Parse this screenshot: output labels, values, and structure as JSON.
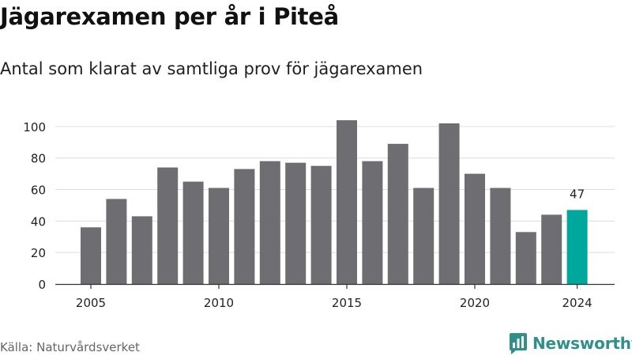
{
  "header": {
    "title": "Jägarexamen per år i Piteå",
    "subtitle": "Antal som klarat av samtliga prov för jägarexamen"
  },
  "footer": {
    "source": "Källa: Naturvårdsverket",
    "brand": "Newsworthy"
  },
  "colors": {
    "bar": "#6e6d72",
    "highlight": "#00a79d",
    "grid": "#dddddd",
    "axis": "#333333",
    "brand": "#2f8f8a"
  },
  "icons": {
    "brand_logo": "newsworthy-chart-bubble-icon"
  },
  "chart_data": {
    "type": "bar",
    "title": "Jägarexamen per år i Piteå",
    "subtitle": "Antal som klarat av samtliga prov för jägarexamen",
    "xlabel": "",
    "ylabel": "",
    "x": [
      2005,
      2006,
      2007,
      2008,
      2009,
      2010,
      2011,
      2012,
      2013,
      2014,
      2015,
      2016,
      2017,
      2018,
      2019,
      2020,
      2021,
      2022,
      2023,
      2024
    ],
    "values": [
      36,
      54,
      43,
      74,
      65,
      61,
      73,
      78,
      77,
      75,
      104,
      78,
      89,
      61,
      102,
      70,
      61,
      33,
      44,
      47
    ],
    "highlight": 2024,
    "data_labels": [
      {
        "x": 2024,
        "label": "47"
      }
    ],
    "xticks": [
      2005,
      2010,
      2015,
      2020,
      2024
    ],
    "yticks": [
      0,
      20,
      40,
      60,
      80,
      100
    ],
    "ylim": [
      0,
      110
    ],
    "grid": true,
    "legend": "none"
  }
}
